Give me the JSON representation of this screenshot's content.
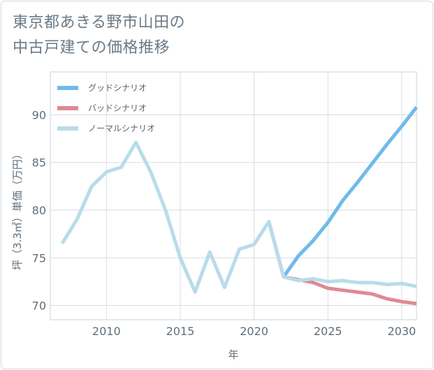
{
  "chart_data": {
    "type": "line",
    "title_lines": [
      "東京都あきる野市山田の",
      "中古戸建ての価格推移"
    ],
    "xlabel": "年",
    "ylabel": "坪（3.3㎡）単価（万円）",
    "xlim": [
      2006.2,
      2031
    ],
    "ylim": [
      68.5,
      94.5
    ],
    "x_ticks": [
      2010,
      2015,
      2020,
      2025,
      2030
    ],
    "y_ticks": [
      70,
      75,
      80,
      85,
      90
    ],
    "grid": true,
    "legend_position": "top-left",
    "series": [
      {
        "name": "グッドシナリオ",
        "color": "#6fbbea",
        "points": [
          [
            2022,
            73.0
          ],
          [
            2023,
            75.2
          ],
          [
            2024,
            76.8
          ],
          [
            2025,
            78.7
          ],
          [
            2026,
            81.0
          ],
          [
            2027,
            82.9
          ],
          [
            2028,
            84.9
          ],
          [
            2029,
            86.9
          ],
          [
            2030,
            88.8
          ],
          [
            2031,
            90.8
          ]
        ]
      },
      {
        "name": "バッドシナリオ",
        "color": "#df8a93",
        "points": [
          [
            2021,
            78.8
          ],
          [
            2022,
            73.0
          ],
          [
            2023,
            72.7
          ],
          [
            2024,
            72.4
          ],
          [
            2025,
            71.8
          ],
          [
            2026,
            71.6
          ],
          [
            2027,
            71.4
          ],
          [
            2028,
            71.2
          ],
          [
            2029,
            70.7
          ],
          [
            2030,
            70.4
          ],
          [
            2031,
            70.2
          ]
        ]
      },
      {
        "name": "ノーマルシナリオ",
        "color": "#b8dcea",
        "points": [
          [
            2007,
            76.5
          ],
          [
            2008,
            79.0
          ],
          [
            2009,
            82.5
          ],
          [
            2010,
            84.0
          ],
          [
            2011,
            84.5
          ],
          [
            2012,
            87.1
          ],
          [
            2013,
            84.0
          ],
          [
            2014,
            80.0
          ],
          [
            2015,
            75.0
          ],
          [
            2016,
            71.4
          ],
          [
            2017,
            75.6
          ],
          [
            2018,
            71.9
          ],
          [
            2019,
            75.9
          ],
          [
            2020,
            76.4
          ],
          [
            2021,
            78.8
          ],
          [
            2022,
            73.0
          ],
          [
            2023,
            72.6
          ],
          [
            2024,
            72.8
          ],
          [
            2025,
            72.5
          ],
          [
            2026,
            72.6
          ],
          [
            2027,
            72.4
          ],
          [
            2028,
            72.4
          ],
          [
            2029,
            72.2
          ],
          [
            2030,
            72.3
          ],
          [
            2031,
            72.0
          ]
        ]
      }
    ]
  }
}
